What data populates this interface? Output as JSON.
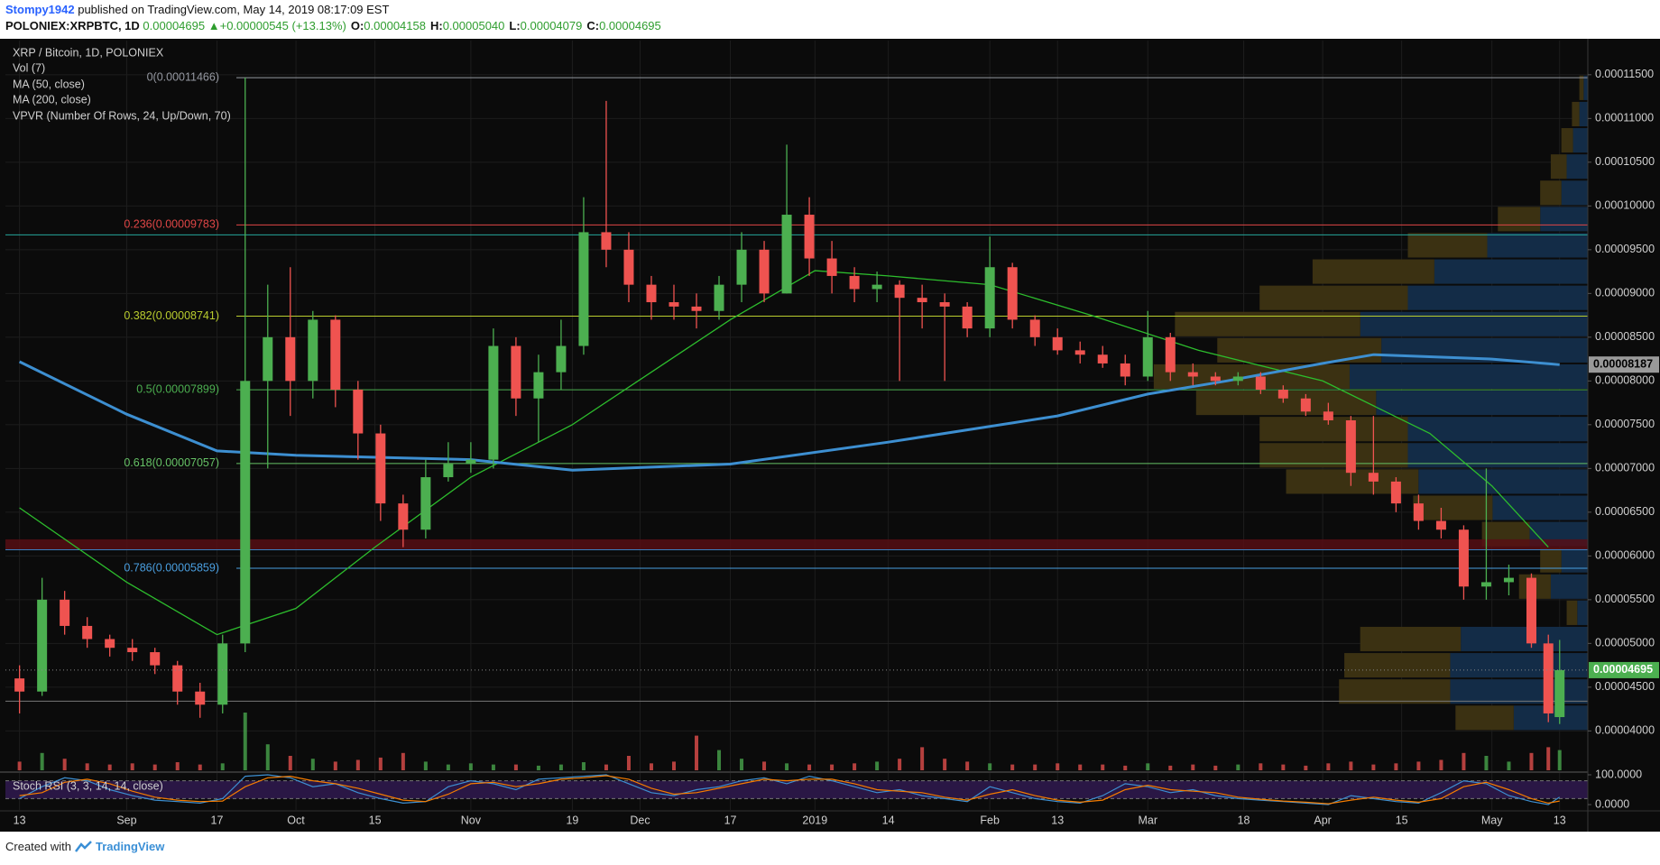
{
  "header": {
    "author": "Stompy1942",
    "published": "published on TradingView.com, May 14, 2019 08:17:09 EST",
    "symbol": "POLONIEX:XRPBTC, 1D",
    "last": "0.00004695",
    "arrow": "▲",
    "change": "+0.00000545 (+13.13%)",
    "ohlc": [
      {
        "label": "O:",
        "value": "0.00004158"
      },
      {
        "label": "H:",
        "value": "0.00005040"
      },
      {
        "label": "L:",
        "value": "0.00004079"
      },
      {
        "label": "C:",
        "value": "0.00004695"
      }
    ]
  },
  "footer": {
    "created": "Created with",
    "brand": "TradingView"
  },
  "chart_data": {
    "type": "candlestick",
    "title": "XRP / Bitcoin, 1D, POLONIEX",
    "grid": true,
    "up_color": "#4caf50",
    "down_color": "#ef5350",
    "x": [
      0,
      4,
      8,
      12,
      16,
      20,
      24,
      28,
      32,
      36,
      40,
      44,
      48,
      52,
      56,
      60,
      64,
      68,
      72,
      76,
      80,
      84,
      88,
      92,
      96,
      100,
      104,
      108,
      112,
      116,
      120,
      124,
      128,
      132,
      136,
      140,
      144,
      148,
      152,
      156,
      160,
      164,
      168,
      172,
      176,
      180,
      184,
      188,
      192,
      196,
      200,
      204,
      208,
      212,
      216,
      220,
      224,
      228,
      232,
      236,
      240,
      244,
      248,
      252,
      256,
      260,
      264,
      268,
      271,
      273
    ],
    "xlim": [
      -2.5,
      278
    ],
    "xticks": [
      {
        "value": 0,
        "label": "13"
      },
      {
        "value": 19,
        "label": "Sep"
      },
      {
        "value": 35,
        "label": "17"
      },
      {
        "value": 49,
        "label": "Oct"
      },
      {
        "value": 63,
        "label": "15"
      },
      {
        "value": 80,
        "label": "Nov"
      },
      {
        "value": 98,
        "label": "19"
      },
      {
        "value": 110,
        "label": "Dec"
      },
      {
        "value": 126,
        "label": "17"
      },
      {
        "value": 141,
        "label": "2019"
      },
      {
        "value": 154,
        "label": "14"
      },
      {
        "value": 172,
        "label": "Feb"
      },
      {
        "value": 184,
        "label": "13"
      },
      {
        "value": 200,
        "label": "Mar"
      },
      {
        "value": 217,
        "label": "18"
      },
      {
        "value": 231,
        "label": "Apr"
      },
      {
        "value": 245,
        "label": "15"
      },
      {
        "value": 261,
        "label": "May"
      },
      {
        "value": 273,
        "label": "13"
      }
    ],
    "ylim": [
      3.55e-05,
      0.0001189
    ],
    "yticks": [
      {
        "value": 4e-05,
        "label": "0.00004000"
      },
      {
        "value": 4.5e-05,
        "label": "0.00004500"
      },
      {
        "value": 5e-05,
        "label": "0.00005000"
      },
      {
        "value": 5.5e-05,
        "label": "0.00005500"
      },
      {
        "value": 6e-05,
        "label": "0.00006000"
      },
      {
        "value": 6.5e-05,
        "label": "0.00006500"
      },
      {
        "value": 7e-05,
        "label": "0.00007000"
      },
      {
        "value": 7.5e-05,
        "label": "0.00007500"
      },
      {
        "value": 8e-05,
        "label": "0.00008000"
      },
      {
        "value": 8.5e-05,
        "label": "0.00008500"
      },
      {
        "value": 9e-05,
        "label": "0.00009000"
      },
      {
        "value": 9.5e-05,
        "label": "0.00009500"
      },
      {
        "value": 0.0001,
        "label": "0.00010000"
      },
      {
        "value": 0.000105,
        "label": "0.00010500"
      },
      {
        "value": 0.00011,
        "label": "0.00011000"
      },
      {
        "value": 0.000115,
        "label": "0.00011500"
      }
    ],
    "candles": {
      "open": [
        4.6e-05,
        4.45e-05,
        5.5e-05,
        5.2e-05,
        5.05e-05,
        4.95e-05,
        4.9e-05,
        4.75e-05,
        4.45e-05,
        4.3e-05,
        5e-05,
        8e-05,
        8.5e-05,
        8e-05,
        8.7e-05,
        7.9e-05,
        7.4e-05,
        6.6e-05,
        6.3e-05,
        6.9e-05,
        7.05e-05,
        7.1e-05,
        8.4e-05,
        7.8e-05,
        8.1e-05,
        8.4e-05,
        9.7e-05,
        9.5e-05,
        9.1e-05,
        8.9e-05,
        8.85e-05,
        8.8e-05,
        9.1e-05,
        9.5e-05,
        9e-05,
        9.9e-05,
        9.4e-05,
        9.2e-05,
        9.05e-05,
        9.1e-05,
        8.95e-05,
        8.9e-05,
        8.85e-05,
        8.6e-05,
        9.3e-05,
        8.7e-05,
        8.5e-05,
        8.35e-05,
        8.3e-05,
        8.2e-05,
        8.05e-05,
        8.5e-05,
        8.1e-05,
        8.05e-05,
        8e-05,
        8.05e-05,
        7.9e-05,
        7.8e-05,
        7.65e-05,
        7.55e-05,
        6.95e-05,
        6.85e-05,
        6.6e-05,
        6.4e-05,
        6.3e-05,
        5.65e-05,
        5.7e-05,
        5.75e-05,
        5e-05,
        4.158e-05
      ],
      "high": [
        4.75e-05,
        5.75e-05,
        5.6e-05,
        5.3e-05,
        5.1e-05,
        5.05e-05,
        4.95e-05,
        4.8e-05,
        4.55e-05,
        5.1e-05,
        0.00011466,
        9.1e-05,
        9.3e-05,
        8.8e-05,
        8.75e-05,
        8e-05,
        7.5e-05,
        6.7e-05,
        7.1e-05,
        7.3e-05,
        7.3e-05,
        8.6e-05,
        8.5e-05,
        8.3e-05,
        8.7e-05,
        0.000101,
        0.000112,
        9.7e-05,
        9.2e-05,
        9.1e-05,
        9e-05,
        9.2e-05,
        9.7e-05,
        9.6e-05,
        0.000107,
        0.000101,
        9.6e-05,
        9.3e-05,
        9.25e-05,
        9.15e-05,
        9.1e-05,
        9e-05,
        8.9e-05,
        9.65e-05,
        9.35e-05,
        8.75e-05,
        8.6e-05,
        8.45e-05,
        8.4e-05,
        8.3e-05,
        8.8e-05,
        8.55e-05,
        8.2e-05,
        8.1e-05,
        8.1e-05,
        8.1e-05,
        7.95e-05,
        7.85e-05,
        7.75e-05,
        7.6e-05,
        7.6e-05,
        6.9e-05,
        6.7e-05,
        6.55e-05,
        6.35e-05,
        7e-05,
        5.9e-05,
        5.8e-05,
        5.1e-05,
        5.04e-05
      ],
      "low": [
        4.2e-05,
        4.4e-05,
        5.1e-05,
        4.95e-05,
        4.85e-05,
        4.8e-05,
        4.65e-05,
        4.3e-05,
        4.15e-05,
        4.2e-05,
        4.9e-05,
        7e-05,
        7.6e-05,
        7.8e-05,
        7.7e-05,
        7.1e-05,
        6.4e-05,
        6.1e-05,
        6.2e-05,
        6.85e-05,
        6.95e-05,
        7e-05,
        7.6e-05,
        7.3e-05,
        7.9e-05,
        8.3e-05,
        9.3e-05,
        8.9e-05,
        8.7e-05,
        8.7e-05,
        8.6e-05,
        8.7e-05,
        8.9e-05,
        8.9e-05,
        9e-05,
        9.2e-05,
        9e-05,
        8.9e-05,
        8.9e-05,
        8e-05,
        8.6e-05,
        8e-05,
        8.5e-05,
        8.5e-05,
        8.6e-05,
        8.4e-05,
        8.3e-05,
        8.2e-05,
        8.15e-05,
        7.95e-05,
        8e-05,
        8e-05,
        7.95e-05,
        7.95e-05,
        7.95e-05,
        7.85e-05,
        7.75e-05,
        7.6e-05,
        7.5e-05,
        6.8e-05,
        6.7e-05,
        6.5e-05,
        6.3e-05,
        6.2e-05,
        5.5e-05,
        5.5e-05,
        5.55e-05,
        4.95e-05,
        4.1e-05,
        4.079e-05
      ],
      "close": [
        4.45e-05,
        5.5e-05,
        5.2e-05,
        5.05e-05,
        4.95e-05,
        4.9e-05,
        4.75e-05,
        4.45e-05,
        4.3e-05,
        5e-05,
        8e-05,
        8.5e-05,
        8e-05,
        8.7e-05,
        7.9e-05,
        7.4e-05,
        6.6e-05,
        6.3e-05,
        6.9e-05,
        7.05e-05,
        7.1e-05,
        8.4e-05,
        7.8e-05,
        8.1e-05,
        8.4e-05,
        9.7e-05,
        9.5e-05,
        9.1e-05,
        8.9e-05,
        8.85e-05,
        8.8e-05,
        9.1e-05,
        9.5e-05,
        9e-05,
        9.9e-05,
        9.4e-05,
        9.2e-05,
        9.05e-05,
        9.1e-05,
        8.95e-05,
        8.9e-05,
        8.85e-05,
        8.6e-05,
        9.3e-05,
        8.7e-05,
        8.5e-05,
        8.35e-05,
        8.3e-05,
        8.2e-05,
        8.05e-05,
        8.5e-05,
        8.1e-05,
        8.05e-05,
        8e-05,
        8.05e-05,
        7.9e-05,
        7.8e-05,
        7.65e-05,
        7.55e-05,
        6.95e-05,
        6.85e-05,
        6.6e-05,
        6.4e-05,
        6.3e-05,
        5.65e-05,
        5.7e-05,
        5.75e-05,
        5e-05,
        4.2e-05,
        4.695e-05
      ]
    },
    "volume": {
      "name": "Vol (7)",
      "ylim": [
        0,
        100
      ],
      "values": [
        15,
        30,
        20,
        12,
        10,
        12,
        10,
        14,
        10,
        12,
        100,
        45,
        25,
        20,
        15,
        18,
        22,
        30,
        15,
        10,
        12,
        10,
        10,
        8,
        10,
        14,
        10,
        25,
        12,
        15,
        60,
        35,
        20,
        15,
        12,
        10,
        10,
        12,
        15,
        20,
        40,
        20,
        15,
        12,
        10,
        10,
        12,
        10,
        10,
        8,
        12,
        8,
        10,
        8,
        10,
        12,
        10,
        8,
        12,
        15,
        10,
        12,
        15,
        18,
        30,
        25,
        15,
        30,
        40,
        35
      ]
    },
    "series": [
      {
        "name": "MA (50, close)",
        "color": "#2dbd2d",
        "width": 1.3,
        "x": [
          0,
          19,
          35,
          49,
          63,
          80,
          98,
          126,
          141,
          154,
          172,
          190,
          209,
          231,
          250,
          261,
          271
        ],
        "values": [
          6.55e-05,
          5.7e-05,
          5.1e-05,
          5.4e-05,
          6.1e-05,
          6.9e-05,
          7.5e-05,
          8.7e-05,
          9.26e-05,
          9.2e-05,
          9.1e-05,
          8.75e-05,
          8.35e-05,
          8e-05,
          7.4e-05,
          6.8e-05,
          6.1e-05
        ]
      },
      {
        "name": "MA (200, close)",
        "color": "#3d8fd1",
        "width": 3,
        "x": [
          0,
          19,
          35,
          49,
          80,
          98,
          126,
          154,
          184,
          200,
          214,
          231,
          240,
          261,
          273
        ],
        "values": [
          8.22e-05,
          7.62e-05,
          7.2e-05,
          7.15e-05,
          7.1e-05,
          6.98e-05,
          7.05e-05,
          7.3e-05,
          7.6e-05,
          7.85e-05,
          8e-05,
          8.2e-05,
          8.3e-05,
          8.25e-05,
          8.187e-05
        ]
      }
    ],
    "vpvr": {
      "name": "VPVR (Number Of Rows, 24, Up/Down, 70)",
      "up_color": "#132c47",
      "down_color": "#3b3112",
      "bins": [
        4e-05,
        4.3e-05,
        4.6e-05,
        4.9e-05,
        5.2e-05,
        5.5e-05,
        5.8e-05,
        6.1e-05,
        6.4e-05,
        6.7e-05,
        7e-05,
        7.3e-05,
        7.6e-05,
        7.9e-05,
        8.2e-05,
        8.5e-05,
        8.8e-05,
        9.1e-05,
        9.4e-05,
        9.7e-05,
        0.0001,
        0.000103,
        0.000106,
        0.000109,
        0.000112,
        0.000115
      ],
      "up": [
        70,
        130,
        130,
        120,
        10,
        35,
        25,
        55,
        90,
        160,
        170,
        170,
        200,
        225,
        195,
        215,
        170,
        145,
        95,
        45,
        25,
        20,
        14,
        8,
        4
      ],
      "down": [
        55,
        105,
        100,
        95,
        10,
        30,
        20,
        45,
        75,
        125,
        140,
        140,
        170,
        185,
        155,
        175,
        140,
        115,
        75,
        40,
        20,
        15,
        11,
        7,
        4
      ]
    },
    "fib": [
      {
        "value": 0.00011466,
        "label": "0(0.00011466)",
        "color": "#9598a1"
      },
      {
        "value": 9.783e-05,
        "label": "0.236(0.00009783)",
        "color": "#e04646"
      },
      {
        "value": 8.741e-05,
        "label": "0.382(0.00008741)",
        "color": "#b9cc2e"
      },
      {
        "value": 7.899e-05,
        "label": "0.5(0.00007899)",
        "color": "#4caf50"
      },
      {
        "value": 7.057e-05,
        "label": "0.618(0.00007057)",
        "color": "#66c266"
      },
      {
        "value": 5.859e-05,
        "label": "0.786(0.00005859)",
        "color": "#4a9fe0"
      }
    ],
    "hlines": [
      {
        "value": 9.67e-05,
        "color": "#26a69a"
      },
      {
        "value": 6.07e-05,
        "color": "#3a7fc0"
      },
      {
        "value": 4.34e-05,
        "color": "#777777"
      }
    ],
    "zone": {
      "values": [
        6.07e-05,
        6.19e-05
      ],
      "color": "#5a0e14"
    },
    "price_tags": [
      {
        "value": 8.187e-05,
        "label": "0.00008187",
        "color": "#9a9a9a",
        "text_color": "#000000"
      },
      {
        "value": 4.695e-05,
        "label": "0.00004695",
        "color": "#4caf50",
        "text_color": "#ffffff"
      }
    ],
    "stoch": {
      "name": "Stoch RSI (3, 3, 14, 14, close)",
      "ylim": [
        -18,
        106
      ],
      "band": [
        20,
        80
      ],
      "band_color": "#2a1745",
      "yticks": [
        {
          "value": 100,
          "label": "100.0000"
        },
        {
          "value": 0,
          "label": "0.0000"
        }
      ],
      "k_color": "#3d8fd1",
      "d_color": "#f57c00",
      "k": [
        20,
        60,
        90,
        80,
        50,
        30,
        15,
        10,
        5,
        20,
        95,
        100,
        90,
        60,
        70,
        40,
        20,
        5,
        10,
        60,
        80,
        70,
        50,
        85,
        90,
        95,
        100,
        70,
        40,
        30,
        50,
        60,
        80,
        90,
        70,
        95,
        80,
        60,
        40,
        50,
        30,
        20,
        10,
        60,
        40,
        20,
        10,
        5,
        30,
        70,
        60,
        40,
        50,
        30,
        20,
        15,
        10,
        5,
        0,
        30,
        20,
        10,
        5,
        40,
        80,
        70,
        30,
        10,
        0,
        25
      ],
      "d": [
        30,
        40,
        75,
        85,
        70,
        45,
        25,
        15,
        10,
        12,
        60,
        90,
        95,
        80,
        70,
        55,
        35,
        15,
        10,
        35,
        70,
        75,
        60,
        70,
        85,
        90,
        97,
        85,
        55,
        35,
        40,
        55,
        70,
        85,
        80,
        85,
        85,
        70,
        50,
        45,
        40,
        25,
        15,
        35,
        50,
        30,
        15,
        8,
        15,
        50,
        65,
        50,
        45,
        40,
        25,
        18,
        12,
        8,
        3,
        15,
        25,
        15,
        8,
        20,
        60,
        75,
        50,
        20,
        5,
        12
      ]
    }
  }
}
